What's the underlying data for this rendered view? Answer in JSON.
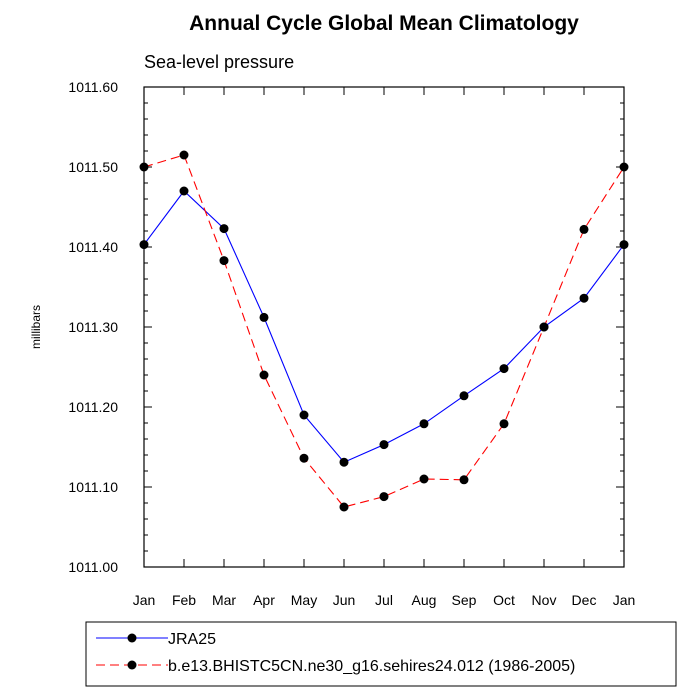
{
  "chart_data": {
    "type": "line",
    "title": "Annual Cycle Global Mean Climatology",
    "subtitle": "Sea-level pressure",
    "xlabel": "",
    "ylabel": "millibars",
    "categories": [
      "Jan",
      "Feb",
      "Mar",
      "Apr",
      "May",
      "Jun",
      "Jul",
      "Aug",
      "Sep",
      "Oct",
      "Nov",
      "Dec",
      "Jan"
    ],
    "ylim": [
      1011.0,
      1011.6
    ],
    "yticks": [
      "1011.00",
      "1011.10",
      "1011.20",
      "1011.30",
      "1011.40",
      "1011.50",
      "1011.60"
    ],
    "series": [
      {
        "name": "JRA25",
        "color": "#0000ff",
        "dash": "solid",
        "values": [
          1011.403,
          1011.47,
          1011.423,
          1011.312,
          1011.19,
          1011.131,
          1011.153,
          1011.179,
          1011.214,
          1011.248,
          1011.3,
          1011.336,
          1011.403
        ]
      },
      {
        "name": "b.e13.BHISTC5CN.ne30_g16.sehires24.012 (1986-2005)",
        "color": "#ff0000",
        "dash": "dashed",
        "values": [
          1011.5,
          1011.515,
          1011.383,
          1011.24,
          1011.136,
          1011.075,
          1011.088,
          1011.11,
          1011.109,
          1011.179,
          1011.3,
          1011.422,
          1011.5
        ]
      }
    ],
    "grid": false,
    "legend_position": "bottom"
  }
}
